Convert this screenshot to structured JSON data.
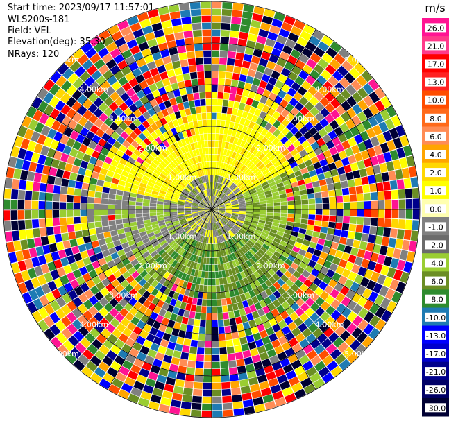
{
  "header": {
    "start_time": "Start time: 2023/09/17 11:57:01",
    "instrument": "WLS200s-181",
    "field": "Field: VEL",
    "elevation": "Elevation(deg): 35.30",
    "nrays": "NRays: 120"
  },
  "chart_data": {
    "type": "heatmap",
    "projection": "polar-ppi",
    "field": "VEL",
    "units": "m/s",
    "n_rays": 120,
    "max_range_km": 5.0,
    "range_ring_labels_km": [
      "1.00km",
      "2.00km",
      "3.00km",
      "4.00km",
      "5.00km"
    ],
    "colorbar": {
      "label": "m/s",
      "ticks": [
        "26.0",
        "21.0",
        "17.0",
        "13.0",
        "10.0",
        "8.0",
        "6.0",
        "4.0",
        "2.0",
        "1.0",
        "0.0",
        "-1.0",
        "-2.0",
        "-4.0",
        "-6.0",
        "-8.0",
        "-10.0",
        "-13.0",
        "-17.0",
        "-21.0",
        "-26.0",
        "-30.0"
      ],
      "colors": [
        "#ff1493",
        "#ff3a8a",
        "#ff0000",
        "#ff2222",
        "#ff4d00",
        "#ff6a1a",
        "#ff8c55",
        "#ffa500",
        "#ffd700",
        "#ffff00",
        "#ffffb0",
        "#808080",
        "#6b6b6b",
        "#9acd32",
        "#6b8e23",
        "#2e8b2e",
        "#1e7bb3",
        "#0000ff",
        "#0000cd",
        "#00008b",
        "#000066",
        "#000033"
      ]
    }
  }
}
